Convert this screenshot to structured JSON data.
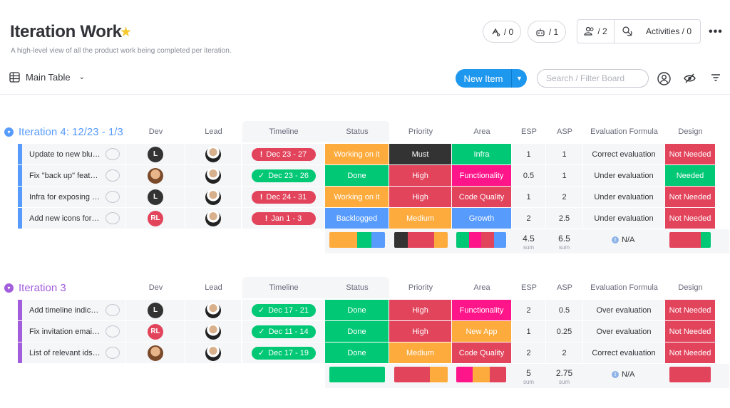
{
  "board": {
    "title": "Iteration Work",
    "subtitle": "A high-level view of all the product work being completed per iteration.",
    "star_icon": "star-icon"
  },
  "header": {
    "integrations": "/ 0",
    "automations": "/ 1",
    "members": "/ 2",
    "activities": "Activities / 0"
  },
  "toolbar": {
    "view_label": "Main Table",
    "new_item": "New Item",
    "search_placeholder": "Search / Filter Board"
  },
  "columns": [
    "Dev",
    "Lead",
    "Timeline",
    "Status",
    "Priority",
    "Area",
    "ESP",
    "ASP",
    "Evaluation Formula",
    "Design"
  ],
  "colors": {
    "working": "#fdab3d",
    "done": "#00c875",
    "stuck": "#e2445c",
    "backlogged": "#579bfc",
    "must": "#333333",
    "high": "#e2445c",
    "medium": "#fdab3d",
    "infra": "#00c875",
    "functionality": "#ff158a",
    "code_quality": "#e2445c",
    "growth": "#579bfc",
    "new_app": "#fdab3d",
    "group4": "#579bfc",
    "group3": "#a25ddc"
  },
  "groups": [
    {
      "title": "Iteration 4: 12/23 - 1/3",
      "color": "#579bfc",
      "rows": [
        {
          "name": "Update to new blu…",
          "dev": "L",
          "timeline": "Dec 23 - 27",
          "tl_icon": "!",
          "tl_color": "#e2445c",
          "status": "Working on it",
          "status_color": "#fdab3d",
          "priority": "Must",
          "priority_color": "#333333",
          "area": "Infra",
          "area_color": "#00c875",
          "esp": "1",
          "asp": "1",
          "eval": "Correct evaluation",
          "design": "Not Needed",
          "design_color": "#e2445c"
        },
        {
          "name": "Fix \"back up\" feat…",
          "dev": "photo",
          "timeline": "Dec 23 - 26",
          "tl_icon": "✓",
          "tl_color": "#00c875",
          "status": "Done",
          "status_color": "#00c875",
          "priority": "High",
          "priority_color": "#e2445c",
          "area": "Functionality",
          "area_color": "#ff158a",
          "esp": "0.5",
          "asp": "1",
          "eval": "Under evaluation",
          "design": "Needed",
          "design_color": "#00c875"
        },
        {
          "name": "Infra for exposing …",
          "dev": "L",
          "timeline": "Dec 24 - 31",
          "tl_icon": "!",
          "tl_color": "#e2445c",
          "status": "Working on it",
          "status_color": "#fdab3d",
          "priority": "High",
          "priority_color": "#e2445c",
          "area": "Code Quality",
          "area_color": "#e2445c",
          "esp": "1",
          "asp": "2",
          "eval": "Under evaluation",
          "design": "Not Needed",
          "design_color": "#e2445c"
        },
        {
          "name": "Add new icons for…",
          "dev": "RL",
          "timeline": "Jan 1 - 3",
          "tl_icon": "!",
          "tl_color": "#e2445c",
          "status": "Backlogged",
          "status_color": "#579bfc",
          "priority": "Medium",
          "priority_color": "#fdab3d",
          "area": "Growth",
          "area_color": "#579bfc",
          "esp": "2",
          "asp": "2.5",
          "eval": "Under evaluation",
          "design": "Not Needed",
          "design_color": "#e2445c"
        }
      ],
      "summary": {
        "esp": "4.5",
        "asp": "6.5",
        "sum_label": "sum",
        "eval": "N/A"
      }
    },
    {
      "title": "Iteration 3",
      "color": "#a25ddc",
      "rows": [
        {
          "name": "Add timeline indic…",
          "dev": "L",
          "timeline": "Dec 17 - 21",
          "tl_icon": "✓",
          "tl_color": "#00c875",
          "status": "Done",
          "status_color": "#00c875",
          "priority": "High",
          "priority_color": "#e2445c",
          "area": "Functionality",
          "area_color": "#ff158a",
          "esp": "2",
          "asp": "0.5",
          "eval": "Over evaluation",
          "design": "Not Needed",
          "design_color": "#e2445c"
        },
        {
          "name": "Fix invitation emai…",
          "dev": "RL",
          "timeline": "Dec 11 - 14",
          "tl_icon": "✓",
          "tl_color": "#00c875",
          "status": "Done",
          "status_color": "#00c875",
          "priority": "High",
          "priority_color": "#e2445c",
          "area": "New App",
          "area_color": "#fdab3d",
          "esp": "1",
          "asp": "0.25",
          "eval": "Over evaluation",
          "design": "Not Needed",
          "design_color": "#e2445c"
        },
        {
          "name": "List of relevant ids…",
          "dev": "photo",
          "timeline": "Dec 17 - 19",
          "tl_icon": "✓",
          "tl_color": "#00c875",
          "status": "Done",
          "status_color": "#00c875",
          "priority": "Medium",
          "priority_color": "#fdab3d",
          "area": "Code Quality",
          "area_color": "#e2445c",
          "esp": "2",
          "asp": "2",
          "eval": "Correct evaluation",
          "design": "Not Needed",
          "design_color": "#e2445c"
        }
      ],
      "summary": {
        "esp": "5",
        "asp": "2.75",
        "sum_label": "sum",
        "eval": "N/A"
      }
    }
  ]
}
